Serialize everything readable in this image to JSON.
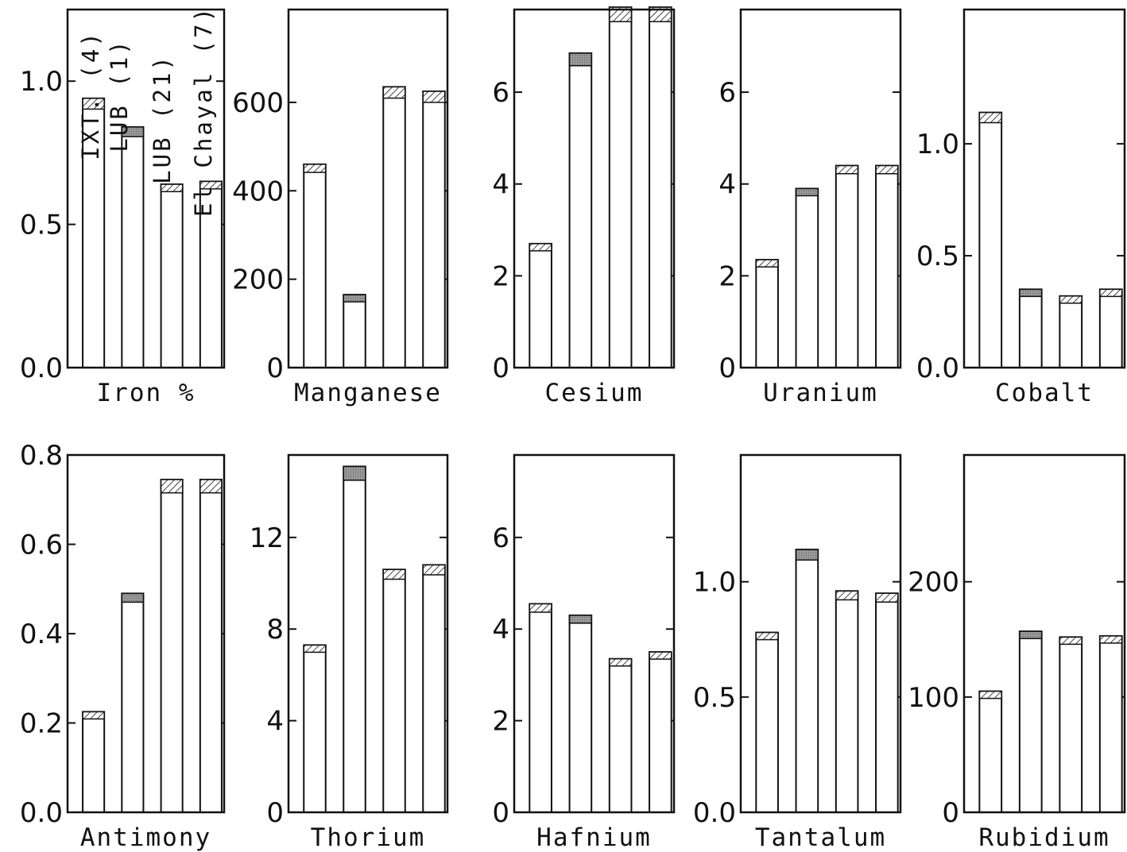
{
  "chart_data": [
    {
      "type": "bar",
      "panel": "Iron",
      "xlabel": "Iron  %",
      "categories": [
        "IXT. (4)",
        "LUB (1)",
        "LUB (21)",
        "El Chayal (7)"
      ],
      "values": [
        0.94,
        0.84,
        0.64,
        0.65
      ],
      "ylim": [
        0,
        1.25
      ],
      "yticks": [
        0.0,
        0.5,
        1.0
      ],
      "ytick_labels": [
        "0.0",
        "0.5",
        "1.0"
      ],
      "ylabel": ""
    },
    {
      "type": "bar",
      "panel": "Manganese",
      "xlabel": "Manganese",
      "categories": [
        "IXT. (4)",
        "LUB (1)",
        "LUB (21)",
        "El Chayal (7)"
      ],
      "values": [
        460,
        165,
        635,
        625
      ],
      "ylim": [
        0,
        810
      ],
      "yticks": [
        0,
        200,
        400,
        600
      ],
      "ytick_labels": [
        "0",
        "200",
        "400",
        "600"
      ],
      "ylabel": ""
    },
    {
      "type": "bar",
      "panel": "Cesium",
      "xlabel": "Cesium",
      "categories": [
        "IXT. (4)",
        "LUB (1)",
        "LUB (21)",
        "El Chayal (7)"
      ],
      "values": [
        2.7,
        6.85,
        7.85,
        7.85
      ],
      "ylim": [
        0,
        7.8
      ],
      "yticks": [
        0,
        2,
        4,
        6
      ],
      "ytick_labels": [
        "0",
        "2",
        "4",
        "6"
      ],
      "ylabel": ""
    },
    {
      "type": "bar",
      "panel": "Uranium",
      "xlabel": "Uranium",
      "categories": [
        "IXT. (4)",
        "LUB (1)",
        "LUB (21)",
        "El Chayal (7)"
      ],
      "values": [
        2.35,
        3.9,
        4.4,
        4.4
      ],
      "ylim": [
        0,
        7.8
      ],
      "yticks": [
        0,
        2,
        4,
        6
      ],
      "ytick_labels": [
        "0",
        "2",
        "4",
        "6"
      ],
      "ylabel": ""
    },
    {
      "type": "bar",
      "panel": "Cobalt",
      "xlabel": "Cobalt",
      "categories": [
        "IXT. (4)",
        "LUB (1)",
        "LUB (21)",
        "El Chayal (7)"
      ],
      "values": [
        1.14,
        0.35,
        0.32,
        0.35
      ],
      "ylim": [
        0,
        1.6
      ],
      "yticks": [
        0.0,
        0.5,
        1.0
      ],
      "ytick_labels": [
        "0.0",
        "0.5",
        "1.0"
      ],
      "ylabel": ""
    },
    {
      "type": "bar",
      "panel": "Antimony",
      "xlabel": "Antimony",
      "categories": [
        "IXT. (4)",
        "LUB (1)",
        "LUB (21)",
        "El Chayal (7)"
      ],
      "values": [
        0.225,
        0.49,
        0.745,
        0.745
      ],
      "ylim": [
        0,
        0.8
      ],
      "yticks": [
        0.0,
        0.2,
        0.4,
        0.6,
        0.8
      ],
      "ytick_labels": [
        "0.0",
        "0.2",
        "0.4",
        "0.6",
        "0.8"
      ],
      "ylabel": ""
    },
    {
      "type": "bar",
      "panel": "Thorium",
      "xlabel": "Thorium",
      "categories": [
        "IXT. (4)",
        "LUB (1)",
        "LUB (21)",
        "El Chayal (7)"
      ],
      "values": [
        7.3,
        15.1,
        10.6,
        10.8
      ],
      "ylim": [
        0,
        15.6
      ],
      "yticks": [
        0,
        4,
        8,
        12
      ],
      "ytick_labels": [
        "0",
        "4",
        "8",
        "12"
      ],
      "ylabel": ""
    },
    {
      "type": "bar",
      "panel": "Hafnium",
      "xlabel": "Hafnium",
      "categories": [
        "IXT. (4)",
        "LUB (1)",
        "LUB (21)",
        "El Chayal (7)"
      ],
      "values": [
        4.55,
        4.3,
        3.35,
        3.5
      ],
      "ylim": [
        0,
        7.8
      ],
      "yticks": [
        0,
        2,
        4,
        6
      ],
      "ytick_labels": [
        "0",
        "2",
        "4",
        "6"
      ],
      "ylabel": ""
    },
    {
      "type": "bar",
      "panel": "Tantalum",
      "xlabel": "Tantalum",
      "categories": [
        "IXT. (4)",
        "LUB (1)",
        "LUB (21)",
        "El Chayal (7)"
      ],
      "values": [
        0.78,
        1.14,
        0.96,
        0.95
      ],
      "ylim": [
        0,
        1.55
      ],
      "yticks": [
        0.0,
        0.5,
        1.0
      ],
      "ytick_labels": [
        "0.0",
        "0.5",
        "1.0"
      ],
      "ylabel": ""
    },
    {
      "type": "bar",
      "panel": "Rubidium",
      "xlabel": "Rubidium",
      "categories": [
        "IXT. (4)",
        "LUB (1)",
        "LUB (21)",
        "El Chayal (7)"
      ],
      "values": [
        105,
        157,
        152,
        153
      ],
      "ylim": [
        0,
        310
      ],
      "yticks": [
        0,
        100,
        200
      ],
      "ytick_labels": [
        "0",
        "100",
        "200"
      ],
      "ylabel": ""
    }
  ],
  "legend": {
    "entries": [
      "IXT. (4)",
      "LUB (1)",
      "LUB (21)",
      "El Chayal (7)"
    ]
  },
  "colors": {
    "ink": "#111111",
    "hatch": "#444444",
    "shade": "#8a8a8a"
  }
}
